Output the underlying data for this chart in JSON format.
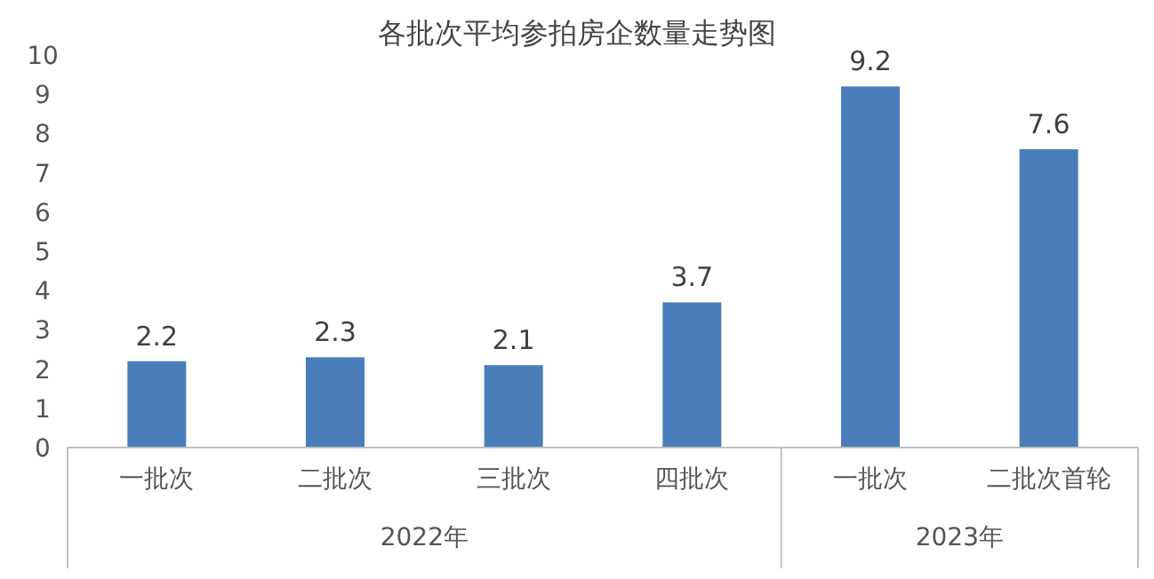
{
  "chart_data": {
    "type": "bar",
    "title": "各批次平均参拍房企数量走势图",
    "categories": [
      "一批次",
      "二批次",
      "三批次",
      "四批次",
      "一批次",
      "二批次首轮"
    ],
    "values": [
      2.2,
      2.3,
      2.1,
      3.7,
      9.2,
      7.6
    ],
    "color": "#4a7ebb",
    "ylim": [
      0,
      10
    ],
    "yticks": [
      0,
      1,
      2,
      3,
      4,
      5,
      6,
      7,
      8,
      9,
      10
    ],
    "data_labels": true,
    "annotations": [
      "2022年",
      "2023年"
    ]
  }
}
